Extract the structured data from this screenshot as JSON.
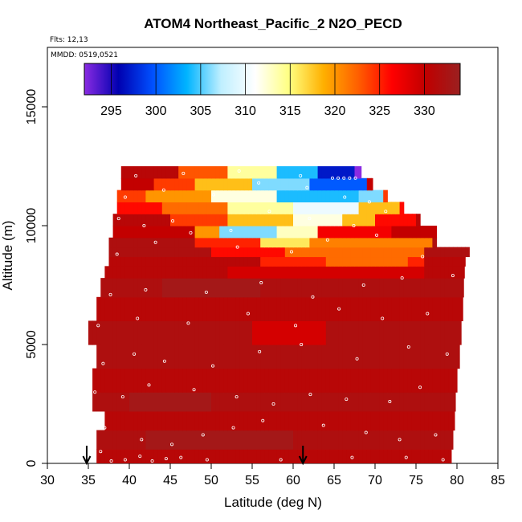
{
  "header": {
    "title": "ATOM4 Northeast_Pacific_2 N2O_PECD",
    "flights": "Flts: 12,13",
    "dates": "MMDD: 0519,0521"
  },
  "colors": {
    "deep_red": "#c20000",
    "red": "#ff0000",
    "orange": "#ff9a00",
    "yellow": "#ffe040",
    "white": "#ffffff",
    "light_blue": "#80dcff",
    "blue": "#0090ff",
    "dark_blue": "#0000b0",
    "violet": "#8a2be2",
    "arrow": "#000000"
  },
  "chart_data": {
    "type": "heatmap",
    "title": "ATOM4 Northeast_Pacific_2 N2O_PECD",
    "xlabel": "Latitude (deg N)",
    "ylabel": "Altitude (m)",
    "xlim": [
      30,
      85
    ],
    "ylim": [
      0,
      17500
    ],
    "xticks": [
      "30",
      "35",
      "40",
      "45",
      "50",
      "55",
      "60",
      "65",
      "70",
      "75",
      "80",
      "85"
    ],
    "yticks": [
      "0",
      "5000",
      "10000",
      "15000"
    ],
    "colorbar": {
      "range": [
        292,
        334
      ],
      "ticks": [
        "295",
        "300",
        "305",
        "310",
        "315",
        "320",
        "325",
        "330"
      ],
      "colors": [
        "#8a2be2",
        "#0000b0",
        "#0050ff",
        "#00b4ff",
        "#bfefff",
        "#ffffff",
        "#ffff80",
        "#ffb000",
        "#ff6000",
        "#ff0000",
        "#c00000",
        "#9a2020"
      ]
    },
    "arrows_at_latitude": [
      34.8,
      61.2
    ],
    "layers": [
      {
        "alt": [
          0,
          600
        ],
        "lat": [
          36.0,
          79.3
        ],
        "default": 331,
        "anomalies": []
      },
      {
        "alt": [
          600,
          1400
        ],
        "lat": [
          36.0,
          79.5
        ],
        "default": 332,
        "anomalies": [
          {
            "lat": [
              42,
              60
            ],
            "value": 333
          }
        ]
      },
      {
        "alt": [
          1400,
          2200
        ],
        "lat": [
          37.0,
          79.7
        ],
        "default": 331,
        "anomalies": []
      },
      {
        "alt": [
          2200,
          3000
        ],
        "lat": [
          35.5,
          79.8
        ],
        "default": 332,
        "anomalies": [
          {
            "lat": [
              40,
              50
            ],
            "value": 333
          }
        ]
      },
      {
        "alt": [
          3000,
          4000
        ],
        "lat": [
          35.5,
          80.0
        ],
        "default": 331,
        "anomalies": []
      },
      {
        "alt": [
          4000,
          5000
        ],
        "lat": [
          36.0,
          80.3
        ],
        "default": 332,
        "anomalies": []
      },
      {
        "alt": [
          5000,
          6000
        ],
        "lat": [
          35.0,
          80.5
        ],
        "default": 332,
        "anomalies": [
          {
            "lat": [
              55,
              64
            ],
            "value": 329
          }
        ]
      },
      {
        "alt": [
          6000,
          7000
        ],
        "lat": [
          36.0,
          80.7
        ],
        "default": 331,
        "anomalies": []
      },
      {
        "alt": [
          7000,
          7800
        ],
        "lat": [
          36.5,
          80.8
        ],
        "default": 332,
        "anomalies": [
          {
            "lat": [
              44,
              56
            ],
            "value": 333
          }
        ]
      },
      {
        "alt": [
          7800,
          8300
        ],
        "lat": [
          37.0,
          80.9
        ],
        "default": 331,
        "anomalies": [
          {
            "lat": [
              52,
              76
            ],
            "value": 329
          }
        ]
      },
      {
        "alt": [
          8300,
          8700
        ],
        "lat": [
          37.5,
          81.0
        ],
        "default": 331,
        "anomalies": [
          {
            "lat": [
              56,
              76
            ],
            "value": 325
          },
          {
            "lat": [
              64,
              74
            ],
            "value": 322
          }
        ]
      },
      {
        "alt": [
          8700,
          9100
        ],
        "lat": [
          37.5,
          81.5
        ],
        "default": 332,
        "anomalies": [
          {
            "lat": [
              50,
              59
            ],
            "value": 326
          },
          {
            "lat": [
              59,
              76
            ],
            "value": 322
          }
        ]
      },
      {
        "alt": [
          9100,
          9500
        ],
        "lat": [
          37.5,
          77.5
        ],
        "default": 332,
        "anomalies": [
          {
            "lat": [
              48,
              56
            ],
            "value": 325
          },
          {
            "lat": [
              56,
              62
            ],
            "value": 316
          },
          {
            "lat": [
              62,
              77
            ],
            "value": 321
          }
        ]
      },
      {
        "alt": [
          9500,
          10000
        ],
        "lat": [
          38.0,
          77.5
        ],
        "default": 330,
        "anomalies": [
          {
            "lat": [
              48,
              51
            ],
            "value": 320
          },
          {
            "lat": [
              51,
              58
            ],
            "value": 306
          },
          {
            "lat": [
              58,
              63
            ],
            "value": 313
          },
          {
            "lat": [
              63,
              72
            ],
            "value": 327
          }
        ]
      },
      {
        "alt": [
          10000,
          10500
        ],
        "lat": [
          38.0,
          75.5
        ],
        "default": 331,
        "anomalies": [
          {
            "lat": [
              45,
              52
            ],
            "value": 324
          },
          {
            "lat": [
              52,
              60
            ],
            "value": 318
          },
          {
            "lat": [
              60,
              66
            ],
            "value": 312
          },
          {
            "lat": [
              66,
              70
            ],
            "value": 318
          },
          {
            "lat": [
              70,
              75
            ],
            "value": 326
          }
        ]
      },
      {
        "alt": [
          10500,
          11000
        ],
        "lat": [
          38.5,
          73.5
        ],
        "default": 326,
        "anomalies": [
          {
            "lat": [
              44,
              52
            ],
            "value": 322
          },
          {
            "lat": [
              52,
              60
            ],
            "value": 314
          },
          {
            "lat": [
              60,
              68
            ],
            "value": 310
          },
          {
            "lat": [
              68,
              73
            ],
            "value": 318
          }
        ]
      },
      {
        "alt": [
          11000,
          11500
        ],
        "lat": [
          38.5,
          71.5
        ],
        "default": 324,
        "anomalies": [
          {
            "lat": [
              42,
              50
            ],
            "value": 320
          },
          {
            "lat": [
              50,
              58
            ],
            "value": 312
          },
          {
            "lat": [
              58,
              68
            ],
            "value": 304
          },
          {
            "lat": [
              68,
              71
            ],
            "value": 306
          }
        ]
      },
      {
        "alt": [
          11500,
          12000
        ],
        "lat": [
          39.0,
          69.7
        ],
        "default": 330,
        "anomalies": [
          {
            "lat": [
              43,
              48
            ],
            "value": 324
          },
          {
            "lat": [
              48,
              55
            ],
            "value": 318
          },
          {
            "lat": [
              55,
              62
            ],
            "value": 306
          },
          {
            "lat": [
              62,
              69
            ],
            "value": 300
          }
        ]
      },
      {
        "alt": [
          12000,
          12500
        ],
        "lat": [
          39.0,
          68.3
        ],
        "default": 331,
        "anomalies": [
          {
            "lat": [
              46,
              52
            ],
            "value": 323
          },
          {
            "lat": [
              52,
              58
            ],
            "value": 314
          },
          {
            "lat": [
              58,
              63
            ],
            "value": 304
          },
          {
            "lat": [
              63,
              67.5
            ],
            "value": 297
          },
          {
            "lat": [
              67.5,
              68.3
            ],
            "value": 292
          }
        ]
      }
    ],
    "sample_points": [
      [
        36.5,
        500
      ],
      [
        37.8,
        100
      ],
      [
        39.5,
        150
      ],
      [
        41.3,
        300
      ],
      [
        42.8,
        100
      ],
      [
        44.5,
        200
      ],
      [
        46.3,
        250
      ],
      [
        49.5,
        150
      ],
      [
        58.5,
        150
      ],
      [
        67.2,
        250
      ],
      [
        73.8,
        250
      ],
      [
        78.3,
        150
      ],
      [
        37.0,
        1500
      ],
      [
        41.5,
        1000
      ],
      [
        45.2,
        800
      ],
      [
        49.0,
        1200
      ],
      [
        52.7,
        1500
      ],
      [
        56.3,
        1800
      ],
      [
        63.7,
        1600
      ],
      [
        68.9,
        1300
      ],
      [
        73.0,
        1000
      ],
      [
        77.4,
        1200
      ],
      [
        35.8,
        3000
      ],
      [
        39.2,
        2800
      ],
      [
        42.4,
        3300
      ],
      [
        47.9,
        3100
      ],
      [
        53.1,
        2800
      ],
      [
        57.6,
        2500
      ],
      [
        62.1,
        2900
      ],
      [
        66.5,
        2700
      ],
      [
        71.8,
        2600
      ],
      [
        75.5,
        3200
      ],
      [
        36.8,
        4200
      ],
      [
        40.6,
        4600
      ],
      [
        44.3,
        4300
      ],
      [
        50.2,
        4100
      ],
      [
        55.9,
        4700
      ],
      [
        61.0,
        5000
      ],
      [
        67.8,
        4400
      ],
      [
        74.1,
        4900
      ],
      [
        78.8,
        4600
      ],
      [
        36.2,
        5800
      ],
      [
        41.0,
        6100
      ],
      [
        47.2,
        5900
      ],
      [
        54.5,
        6300
      ],
      [
        60.3,
        5800
      ],
      [
        65.6,
        6500
      ],
      [
        70.9,
        6100
      ],
      [
        76.4,
        6300
      ],
      [
        37.7,
        7100
      ],
      [
        42.0,
        7300
      ],
      [
        49.4,
        7200
      ],
      [
        56.1,
        7600
      ],
      [
        62.4,
        7000
      ],
      [
        68.6,
        7500
      ],
      [
        73.3,
        7800
      ],
      [
        79.5,
        7900
      ],
      [
        38.5,
        8800
      ],
      [
        43.2,
        9300
      ],
      [
        47.5,
        9700
      ],
      [
        53.2,
        9100
      ],
      [
        59.8,
        8900
      ],
      [
        64.2,
        9400
      ],
      [
        70.2,
        9600
      ],
      [
        75.8,
        8700
      ],
      [
        38.7,
        10300
      ],
      [
        41.8,
        10000
      ],
      [
        45.3,
        10200
      ],
      [
        52.4,
        9800
      ],
      [
        57.1,
        10600
      ],
      [
        62.0,
        10300
      ],
      [
        67.4,
        10000
      ],
      [
        71.3,
        10600
      ],
      [
        39.5,
        11200
      ],
      [
        44.2,
        11500
      ],
      [
        50.3,
        11300
      ],
      [
        55.8,
        11800
      ],
      [
        61.7,
        11600
      ],
      [
        66.3,
        11200
      ],
      [
        69.3,
        11000
      ],
      [
        40.8,
        12100
      ],
      [
        46.6,
        12200
      ],
      [
        53.4,
        12300
      ],
      [
        60.9,
        12100
      ],
      [
        64.8,
        12000
      ],
      [
        65.5,
        12000
      ],
      [
        66.2,
        12000
      ],
      [
        66.9,
        12000
      ],
      [
        67.6,
        12000
      ]
    ]
  }
}
